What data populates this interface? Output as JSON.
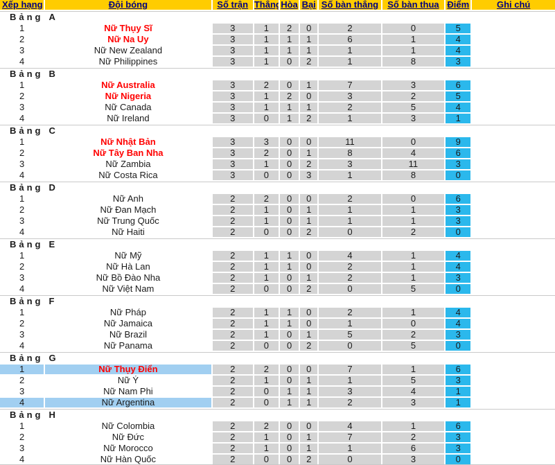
{
  "colors": {
    "header_bg": "#FFCC00",
    "header_text": "#000080",
    "stat_bg": "#D4D4D4",
    "points_bg": "#2BB8EC",
    "highlight_bg": "#A1CFF1",
    "team_red": "#FF0000",
    "divider": "#C9C9C9"
  },
  "table": {
    "headers": [
      "Xếp hạng",
      "Đội bóng",
      "Số trận",
      "Thắng",
      "Hòa",
      "Bại",
      "Số bàn thắng",
      "Số bàn thua",
      "Điểm",
      "Ghi chú"
    ]
  },
  "groups": [
    {
      "label": "Bảng",
      "letter": "A",
      "rows": [
        {
          "rank": "1",
          "team": "Nữ Thụy Sĩ",
          "team_color": "red",
          "row_highlight": false,
          "played": "3",
          "won": "1",
          "drawn": "2",
          "lost": "0",
          "goals_for": "2",
          "goals_against": "0",
          "points": "5",
          "note": ""
        },
        {
          "rank": "2",
          "team": "Nữ Na Uy",
          "team_color": "red",
          "row_highlight": false,
          "played": "3",
          "won": "1",
          "drawn": "1",
          "lost": "1",
          "goals_for": "6",
          "goals_against": "1",
          "points": "4",
          "note": ""
        },
        {
          "rank": "3",
          "team": "Nữ New Zealand",
          "team_color": "black",
          "row_highlight": false,
          "played": "3",
          "won": "1",
          "drawn": "1",
          "lost": "1",
          "goals_for": "1",
          "goals_against": "1",
          "points": "4",
          "note": ""
        },
        {
          "rank": "4",
          "team": "Nữ Philippines",
          "team_color": "black",
          "row_highlight": false,
          "played": "3",
          "won": "1",
          "drawn": "0",
          "lost": "2",
          "goals_for": "1",
          "goals_against": "8",
          "points": "3",
          "note": ""
        }
      ]
    },
    {
      "label": "Bảng",
      "letter": "B",
      "rows": [
        {
          "rank": "1",
          "team": "Nữ Australia",
          "team_color": "red",
          "row_highlight": false,
          "played": "3",
          "won": "2",
          "drawn": "0",
          "lost": "1",
          "goals_for": "7",
          "goals_against": "3",
          "points": "6",
          "note": ""
        },
        {
          "rank": "2",
          "team": "Nữ Nigeria",
          "team_color": "red",
          "row_highlight": false,
          "played": "3",
          "won": "1",
          "drawn": "2",
          "lost": "0",
          "goals_for": "3",
          "goals_against": "2",
          "points": "5",
          "note": ""
        },
        {
          "rank": "3",
          "team": "Nữ Canada",
          "team_color": "black",
          "row_highlight": false,
          "played": "3",
          "won": "1",
          "drawn": "1",
          "lost": "1",
          "goals_for": "2",
          "goals_against": "5",
          "points": "4",
          "note": ""
        },
        {
          "rank": "4",
          "team": "Nữ Ireland",
          "team_color": "black",
          "row_highlight": false,
          "played": "3",
          "won": "0",
          "drawn": "1",
          "lost": "2",
          "goals_for": "1",
          "goals_against": "3",
          "points": "1",
          "note": ""
        }
      ]
    },
    {
      "label": "Bảng",
      "letter": "C",
      "rows": [
        {
          "rank": "1",
          "team": "Nữ Nhật Bản",
          "team_color": "red",
          "row_highlight": false,
          "played": "3",
          "won": "3",
          "drawn": "0",
          "lost": "0",
          "goals_for": "11",
          "goals_against": "0",
          "points": "9",
          "note": ""
        },
        {
          "rank": "2",
          "team": "Nữ Tây Ban Nha",
          "team_color": "red",
          "row_highlight": false,
          "played": "3",
          "won": "2",
          "drawn": "0",
          "lost": "1",
          "goals_for": "8",
          "goals_against": "4",
          "points": "6",
          "note": ""
        },
        {
          "rank": "3",
          "team": "Nữ Zambia",
          "team_color": "black",
          "row_highlight": false,
          "played": "3",
          "won": "1",
          "drawn": "0",
          "lost": "2",
          "goals_for": "3",
          "goals_against": "11",
          "points": "3",
          "note": ""
        },
        {
          "rank": "4",
          "team": "Nữ Costa Rica",
          "team_color": "black",
          "row_highlight": false,
          "played": "3",
          "won": "0",
          "drawn": "0",
          "lost": "3",
          "goals_for": "1",
          "goals_against": "8",
          "points": "0",
          "note": ""
        }
      ]
    },
    {
      "label": "Bảng",
      "letter": "D",
      "rows": [
        {
          "rank": "1",
          "team": "Nữ Anh",
          "team_color": "black",
          "row_highlight": false,
          "played": "2",
          "won": "2",
          "drawn": "0",
          "lost": "0",
          "goals_for": "2",
          "goals_against": "0",
          "points": "6",
          "note": ""
        },
        {
          "rank": "2",
          "team": "Nữ Đan Mạch",
          "team_color": "black",
          "row_highlight": false,
          "played": "2",
          "won": "1",
          "drawn": "0",
          "lost": "1",
          "goals_for": "1",
          "goals_against": "1",
          "points": "3",
          "note": ""
        },
        {
          "rank": "3",
          "team": "Nữ Trung Quốc",
          "team_color": "black",
          "row_highlight": false,
          "played": "2",
          "won": "1",
          "drawn": "0",
          "lost": "1",
          "goals_for": "1",
          "goals_against": "1",
          "points": "3",
          "note": ""
        },
        {
          "rank": "4",
          "team": "Nữ Haiti",
          "team_color": "black",
          "row_highlight": false,
          "played": "2",
          "won": "0",
          "drawn": "0",
          "lost": "2",
          "goals_for": "0",
          "goals_against": "2",
          "points": "0",
          "note": ""
        }
      ]
    },
    {
      "label": "Bảng",
      "letter": "E",
      "rows": [
        {
          "rank": "1",
          "team": "Nữ Mỹ",
          "team_color": "black",
          "row_highlight": false,
          "played": "2",
          "won": "1",
          "drawn": "1",
          "lost": "0",
          "goals_for": "4",
          "goals_against": "1",
          "points": "4",
          "note": ""
        },
        {
          "rank": "2",
          "team": "Nữ Hà Lan",
          "team_color": "black",
          "row_highlight": false,
          "played": "2",
          "won": "1",
          "drawn": "1",
          "lost": "0",
          "goals_for": "2",
          "goals_against": "1",
          "points": "4",
          "note": ""
        },
        {
          "rank": "3",
          "team": "Nữ Bồ Đào Nha",
          "team_color": "black",
          "row_highlight": false,
          "played": "2",
          "won": "1",
          "drawn": "0",
          "lost": "1",
          "goals_for": "2",
          "goals_against": "1",
          "points": "3",
          "note": ""
        },
        {
          "rank": "4",
          "team": "Nữ Việt Nam",
          "team_color": "black",
          "row_highlight": false,
          "played": "2",
          "won": "0",
          "drawn": "0",
          "lost": "2",
          "goals_for": "0",
          "goals_against": "5",
          "points": "0",
          "note": ""
        }
      ]
    },
    {
      "label": "Bảng",
      "letter": "F",
      "rows": [
        {
          "rank": "1",
          "team": "Nữ Pháp",
          "team_color": "black",
          "row_highlight": false,
          "played": "2",
          "won": "1",
          "drawn": "1",
          "lost": "0",
          "goals_for": "2",
          "goals_against": "1",
          "points": "4",
          "note": ""
        },
        {
          "rank": "2",
          "team": "Nữ Jamaica",
          "team_color": "black",
          "row_highlight": false,
          "played": "2",
          "won": "1",
          "drawn": "1",
          "lost": "0",
          "goals_for": "1",
          "goals_against": "0",
          "points": "4",
          "note": ""
        },
        {
          "rank": "3",
          "team": "Nữ Brazil",
          "team_color": "black",
          "row_highlight": false,
          "played": "2",
          "won": "1",
          "drawn": "0",
          "lost": "1",
          "goals_for": "5",
          "goals_against": "2",
          "points": "3",
          "note": ""
        },
        {
          "rank": "4",
          "team": "Nữ Panama",
          "team_color": "black",
          "row_highlight": false,
          "played": "2",
          "won": "0",
          "drawn": "0",
          "lost": "2",
          "goals_for": "0",
          "goals_against": "5",
          "points": "0",
          "note": ""
        }
      ]
    },
    {
      "label": "Bảng",
      "letter": "G",
      "rows": [
        {
          "rank": "1",
          "team": "Nữ Thụy Điển",
          "team_color": "red",
          "row_highlight": true,
          "played": "2",
          "won": "2",
          "drawn": "0",
          "lost": "0",
          "goals_for": "7",
          "goals_against": "1",
          "points": "6",
          "note": ""
        },
        {
          "rank": "2",
          "team": "Nữ Ý",
          "team_color": "black",
          "row_highlight": false,
          "played": "2",
          "won": "1",
          "drawn": "0",
          "lost": "1",
          "goals_for": "1",
          "goals_against": "5",
          "points": "3",
          "note": ""
        },
        {
          "rank": "3",
          "team": "Nữ Nam Phi",
          "team_color": "black",
          "row_highlight": false,
          "played": "2",
          "won": "0",
          "drawn": "1",
          "lost": "1",
          "goals_for": "3",
          "goals_against": "4",
          "points": "1",
          "note": ""
        },
        {
          "rank": "4",
          "team": "Nữ Argentina",
          "team_color": "black",
          "row_highlight": true,
          "played": "2",
          "won": "0",
          "drawn": "1",
          "lost": "1",
          "goals_for": "2",
          "goals_against": "3",
          "points": "1",
          "note": ""
        }
      ]
    },
    {
      "label": "Bảng",
      "letter": "H",
      "rows": [
        {
          "rank": "1",
          "team": "Nữ Colombia",
          "team_color": "black",
          "row_highlight": false,
          "played": "2",
          "won": "2",
          "drawn": "0",
          "lost": "0",
          "goals_for": "4",
          "goals_against": "1",
          "points": "6",
          "note": ""
        },
        {
          "rank": "2",
          "team": "Nữ Đức",
          "team_color": "black",
          "row_highlight": false,
          "played": "2",
          "won": "1",
          "drawn": "0",
          "lost": "1",
          "goals_for": "7",
          "goals_against": "2",
          "points": "3",
          "note": ""
        },
        {
          "rank": "3",
          "team": "Nữ Morocco",
          "team_color": "black",
          "row_highlight": false,
          "played": "2",
          "won": "1",
          "drawn": "0",
          "lost": "1",
          "goals_for": "1",
          "goals_against": "6",
          "points": "3",
          "note": ""
        },
        {
          "rank": "4",
          "team": "Nữ Hàn Quốc",
          "team_color": "black",
          "row_highlight": false,
          "played": "2",
          "won": "0",
          "drawn": "0",
          "lost": "2",
          "goals_for": "0",
          "goals_against": "3",
          "points": "0",
          "note": ""
        }
      ]
    }
  ]
}
